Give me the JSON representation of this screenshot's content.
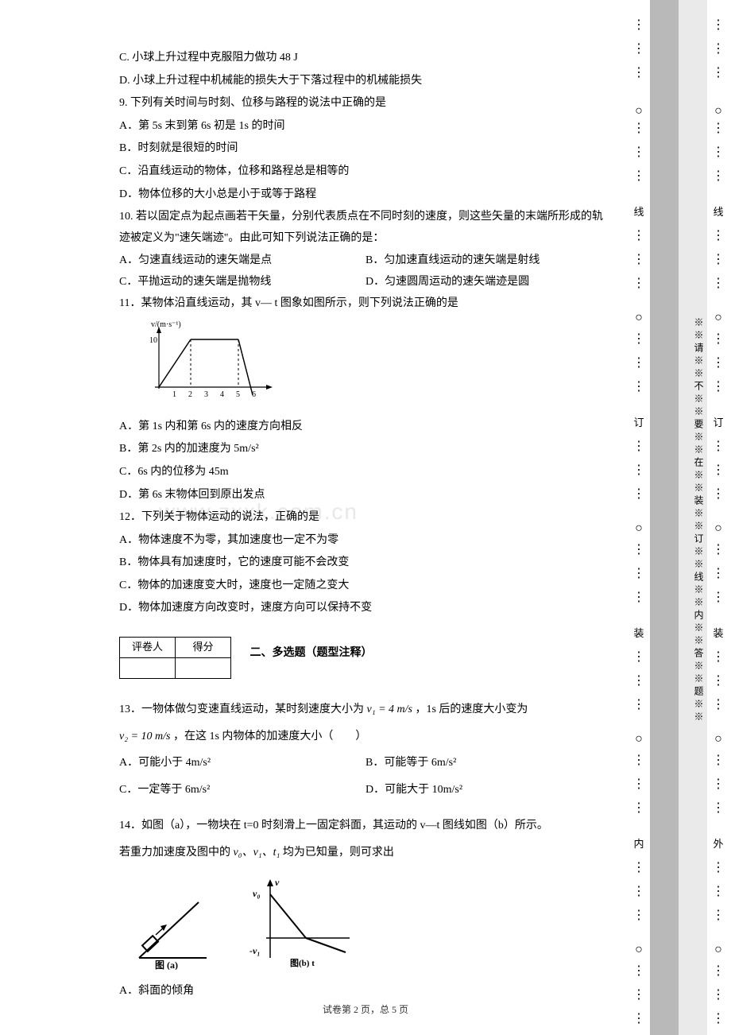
{
  "watermark": "www.zxxk.com.cn",
  "q8": {
    "optC": "C. 小球上升过程中克服阻力做功 48 J",
    "optD": "D. 小球上升过程中机械能的损失大于下落过程中的机械能损失"
  },
  "q9": {
    "stem": "9. 下列有关时间与时刻、位移与路程的说法中正确的是",
    "A": "A．第 5s 末到第 6s 初是 1s 的时间",
    "B": "B．时刻就是很短的时间",
    "C": "C．沿直线运动的物体，位移和路程总是相等的",
    "D": "D．物体位移的大小总是小于或等于路程"
  },
  "q10": {
    "stem": "10. 若以固定点为起点画若干矢量，分别代表质点在不同时刻的速度，则这些矢量的末端所形成的轨迹被定义为\"速矢端迹\"。由此可知下列说法正确的是：",
    "A": "A．匀速直线运动的速矢端是点",
    "B": "B．匀加速直线运动的速矢端是射线",
    "C": "C．平抛运动的速矢端是抛物线",
    "D": "D．匀速圆周运动的速矢端迹是圆"
  },
  "q11": {
    "stem": "11．某物体沿直线运动，其 v— t 图象如图所示，则下列说法正确的是",
    "chart": {
      "type": "line",
      "yaxis_label": "v/(m·s⁻¹)",
      "y_values": [
        10
      ],
      "x_ticks": [
        1,
        2,
        3,
        4,
        5,
        6
      ],
      "segments": [
        {
          "from": [
            0,
            0
          ],
          "to": [
            2,
            10
          ],
          "style": "solid"
        },
        {
          "from": [
            2,
            10
          ],
          "to": [
            5,
            10
          ],
          "style": "solid"
        },
        {
          "from": [
            5,
            10
          ],
          "to": [
            6,
            0
          ],
          "style": "solid",
          "note": "goes below axis"
        }
      ],
      "dashed_guides": [
        [
          2,
          0,
          2,
          10
        ]
      ],
      "axis_color": "#000000",
      "line_color": "#000000",
      "font_size": 10
    },
    "A": "A．第 1s 内和第 6s 内的速度方向相反",
    "B": "B．第 2s 内的加速度为 5m/s²",
    "C": "C．6s 内的位移为 45m",
    "D": "D．第 6s 末物体回到原出发点"
  },
  "q12": {
    "stem": "12．下列关于物体运动的说法，正确的是",
    "A": "A．物体速度不为零，其加速度也一定不为零",
    "B": "B．物体具有加速度时，它的速度可能不会改变",
    "C": "C．物体的加速度变大时，速度也一定随之变大",
    "D": "D．物体加速度方向改变时，速度方向可以保持不变"
  },
  "score_table": {
    "h1": "评卷人",
    "h2": "得分"
  },
  "section2": "二、多选题（题型注释）",
  "q13": {
    "stem_a": "13．一物体做匀变速直线运动，某时刻速度大小为",
    "v1": "v₁ = 4 m/s",
    "stem_b": "，1s 后的速度大小变为",
    "v2": "v₂ = 10 m/s",
    "stem_c": "，在这 1s 内物体的加速度大小（　　）",
    "A": "A．可能小于 4m/s²",
    "B": "B．可能等于 6m/s²",
    "C": "C．一定等于 6m/s²",
    "D": "D．可能大于 10m/s²"
  },
  "q14": {
    "stem_a": "14．如图（a），一物块在 t=0 时刻滑上一固定斜面，其运动的 v—t 图线如图（b）所示。",
    "stem_b": "若重力加速度及图中的",
    "vars": "v₀、v₁、t₁",
    "stem_c": "均为已知量，则可求出",
    "fig_a_label": "图 (a)",
    "fig_b_ylabel": "v",
    "fig_b_v0": "v₀",
    "fig_b_v1": "-v₁",
    "fig_b_xlabel": "图(b) t",
    "A": "A．斜面的倾角"
  },
  "footer": "试卷第 2 页，总 5 页",
  "binding": {
    "chars_inner": [
      "线",
      "订",
      "装",
      "内"
    ],
    "chars_outer": [
      "线",
      "订",
      "装",
      "外"
    ],
    "vtext": "※※请※※不※※要※※在※※装※※订※※线※※内※※答※※题※※",
    "circle": "○",
    "dots": "⋮"
  }
}
